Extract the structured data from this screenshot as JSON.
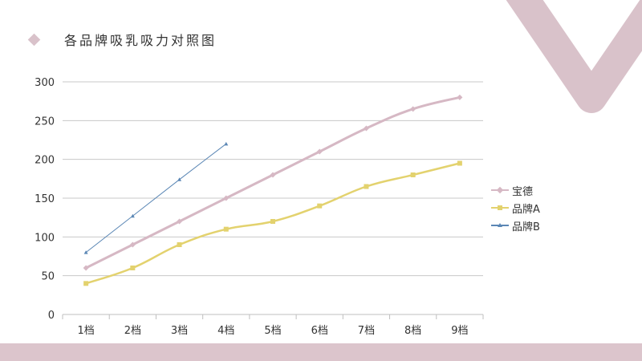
{
  "title": "各品牌吸乳吸力对照图",
  "colors": {
    "accent": "#d9c2ca",
    "band": "#dcc5cc",
    "grid": "#c8c8c8",
    "axis": "#bfbfbf",
    "text": "#333333"
  },
  "chart_data": {
    "type": "line",
    "title": "",
    "xlabel": "",
    "ylabel": "",
    "categories": [
      "1档",
      "2档",
      "3档",
      "4档",
      "5档",
      "6档",
      "7档",
      "8档",
      "9档"
    ],
    "ylim": [
      0,
      300
    ],
    "yticks": [
      0,
      50,
      100,
      150,
      200,
      250,
      300
    ],
    "grid": true,
    "legend_position": "right",
    "series": [
      {
        "name": "宝德",
        "color": "#d6b8c4",
        "marker": "diamond",
        "smooth": true,
        "width": 3,
        "values": [
          60,
          90,
          120,
          150,
          180,
          210,
          240,
          265,
          280
        ]
      },
      {
        "name": "品牌A",
        "color": "#e3d26e",
        "marker": "square",
        "smooth": true,
        "width": 2.5,
        "values": [
          40,
          60,
          90,
          110,
          120,
          140,
          165,
          180,
          195
        ]
      },
      {
        "name": "品牌B",
        "color": "#5b87b5",
        "marker": "triangle",
        "smooth": false,
        "width": 1,
        "values": [
          80,
          127,
          174,
          220,
          null,
          null,
          null,
          null,
          null
        ]
      }
    ]
  }
}
